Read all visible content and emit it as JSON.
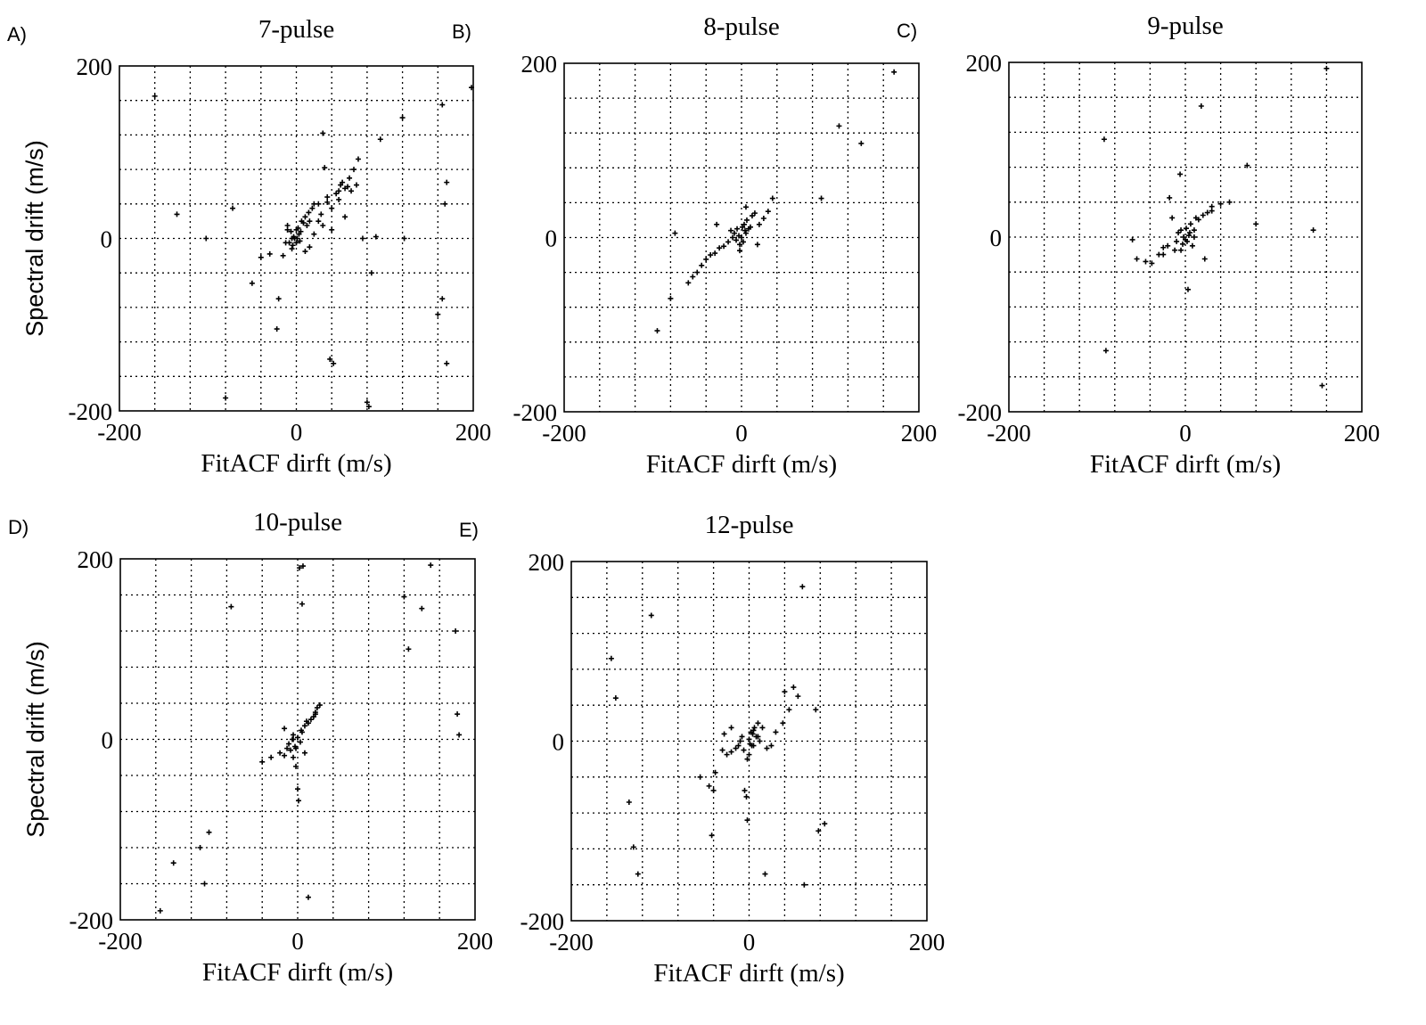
{
  "chart_data": [
    {
      "type": "scatter",
      "panel": "A)",
      "title": "7-pulse",
      "xlabel": "FitACF dirft (m/s)",
      "ylabel": "Spectral drift (m/s)",
      "xlim": [
        -200,
        200
      ],
      "ylim": [
        -200,
        200
      ],
      "xticks": [
        "-200",
        "0",
        "200"
      ],
      "yticks": [
        "-200",
        "0",
        "200"
      ],
      "grid": true,
      "series": [
        {
          "x": [
            -160,
            -135,
            -102,
            -72,
            -50,
            -40,
            -30,
            -20,
            -15,
            -12,
            -10,
            -8,
            -6,
            -5,
            -4,
            -3,
            -2,
            0,
            0,
            1,
            2,
            3,
            4,
            5,
            6,
            8,
            10,
            12,
            14,
            15,
            18,
            20,
            25,
            28,
            30,
            32,
            35,
            40,
            45,
            48,
            50,
            52,
            55,
            60,
            65,
            70,
            75,
            80,
            82,
            85,
            90,
            95,
            120,
            122,
            160,
            165,
            170,
            168,
            170,
            165,
            198,
            -80,
            -22,
            38,
            42,
            -5,
            10,
            20,
            -10,
            15,
            30,
            55,
            25,
            40,
            35,
            48,
            58,
            62,
            68
          ],
          "y": [
            165,
            28,
            0,
            35,
            -52,
            -22,
            -18,
            -70,
            -20,
            -5,
            15,
            -5,
            8,
            -12,
            -8,
            2,
            0,
            -5,
            10,
            0,
            12,
            5,
            -3,
            8,
            20,
            18,
            25,
            15,
            30,
            20,
            35,
            40,
            40,
            28,
            122,
            82,
            48,
            10,
            52,
            55,
            62,
            65,
            58,
            70,
            80,
            92,
            0,
            -190,
            -195,
            -40,
            2,
            115,
            140,
            0,
            -88,
            -70,
            -145,
            40,
            65,
            155,
            175,
            -185,
            -105,
            -140,
            -145,
            0,
            -15,
            5,
            10,
            -10,
            15,
            25,
            20,
            35,
            42,
            45,
            60,
            55,
            62
          ]
        }
      ]
    },
    {
      "type": "scatter",
      "panel": "B)",
      "title": "8-pulse",
      "xlabel": "FitACF dirft (m/s)",
      "ylabel": "",
      "xlim": [
        -200,
        200
      ],
      "ylim": [
        -200,
        200
      ],
      "xticks": [
        "-200",
        "0",
        "200"
      ],
      "yticks": [
        "-200",
        "0",
        "200"
      ],
      "grid": true,
      "series": [
        {
          "x": [
            -95,
            -80,
            -60,
            -55,
            -50,
            -45,
            -40,
            -35,
            -30,
            -25,
            -20,
            -15,
            -10,
            -8,
            -6,
            -5,
            -3,
            -2,
            0,
            1,
            2,
            3,
            4,
            5,
            6,
            8,
            10,
            12,
            15,
            20,
            25,
            30,
            35,
            90,
            110,
            135,
            172,
            -75,
            -28,
            5,
            -2,
            18,
            -12
          ],
          "y": [
            -107,
            -70,
            -52,
            -45,
            -40,
            -32,
            -25,
            -20,
            -18,
            -12,
            -10,
            -5,
            0,
            5,
            -3,
            10,
            2,
            -8,
            0,
            12,
            -5,
            15,
            8,
            5,
            20,
            10,
            12,
            25,
            28,
            15,
            22,
            30,
            45,
            45,
            128,
            108,
            190,
            5,
            15,
            35,
            -15,
            -8,
            8
          ]
        }
      ]
    },
    {
      "type": "scatter",
      "panel": "C)",
      "title": "9-pulse",
      "xlabel": "FitACF dirft (m/s)",
      "ylabel": "",
      "xlim": [
        -200,
        200
      ],
      "ylim": [
        -200,
        200
      ],
      "xticks": [
        "-200",
        "0",
        "200"
      ],
      "yticks": [
        "-200",
        "0",
        "200"
      ],
      "grid": true,
      "series": [
        {
          "x": [
            -92,
            -90,
            -60,
            -55,
            -45,
            -38,
            -30,
            -25,
            -20,
            -18,
            -15,
            -12,
            -10,
            -8,
            -6,
            -5,
            -3,
            -2,
            0,
            1,
            2,
            3,
            4,
            5,
            6,
            8,
            10,
            12,
            15,
            18,
            20,
            22,
            25,
            30,
            40,
            50,
            70,
            80,
            145,
            155,
            160,
            -25,
            -5,
            10,
            30
          ],
          "y": [
            112,
            -130,
            -3,
            -25,
            -28,
            -30,
            -20,
            -12,
            -10,
            45,
            22,
            -15,
            -5,
            5,
            72,
            8,
            -8,
            0,
            -3,
            10,
            -5,
            -60,
            2,
            5,
            15,
            -10,
            8,
            22,
            20,
            150,
            25,
            -25,
            28,
            35,
            38,
            40,
            82,
            15,
            8,
            -170,
            193,
            -20,
            -15,
            0,
            30
          ]
        }
      ]
    },
    {
      "type": "scatter",
      "panel": "D)",
      "title": "10-pulse",
      "xlabel": "FitACF dirft (m/s)",
      "ylabel": "Spectral drift (m/s)",
      "xlim": [
        -200,
        200
      ],
      "ylim": [
        -200,
        200
      ],
      "xticks": [
        "-200",
        "0",
        "200"
      ],
      "yticks": [
        "-200",
        "0",
        "200"
      ],
      "grid": true,
      "series": [
        {
          "x": [
            -155,
            -140,
            -110,
            -105,
            -100,
            -75,
            -40,
            -30,
            -20,
            -15,
            -12,
            -10,
            -8,
            -6,
            -5,
            -3,
            -2,
            0,
            1,
            2,
            3,
            4,
            5,
            6,
            8,
            10,
            12,
            15,
            18,
            20,
            25,
            5,
            -5,
            -2,
            0,
            12,
            20,
            120,
            125,
            140,
            150,
            178,
            180,
            182,
            -5,
            8,
            -15,
            22
          ],
          "y": [
            -190,
            -137,
            -120,
            -160,
            -103,
            147,
            -25,
            -20,
            -15,
            -18,
            -10,
            -5,
            -12,
            0,
            5,
            -8,
            -30,
            -55,
            -68,
            190,
            -3,
            10,
            8,
            192,
            15,
            20,
            -175,
            22,
            25,
            30,
            38,
            150,
            0,
            -10,
            2,
            18,
            28,
            158,
            100,
            145,
            193,
            120,
            28,
            5,
            -20,
            -15,
            12,
            35
          ]
        }
      ]
    },
    {
      "type": "scatter",
      "panel": "E)",
      "title": "12-pulse",
      "xlabel": "FitACF dirft (m/s)",
      "ylabel": "",
      "xlim": [
        -200,
        200
      ],
      "ylim": [
        -200,
        200
      ],
      "xticks": [
        "-200",
        "0",
        "200"
      ],
      "yticks": [
        "-200",
        "0",
        "200"
      ],
      "grid": true,
      "series": [
        {
          "x": [
            -155,
            -150,
            -135,
            -130,
            -125,
            -110,
            -55,
            -45,
            -42,
            -40,
            -38,
            -30,
            -25,
            -20,
            -15,
            -12,
            -10,
            -8,
            -6,
            -5,
            -3,
            -2,
            0,
            1,
            2,
            3,
            4,
            5,
            6,
            8,
            10,
            12,
            15,
            18,
            20,
            25,
            30,
            38,
            40,
            45,
            50,
            55,
            60,
            62,
            75,
            78,
            85,
            -2,
            0,
            5,
            10,
            -20,
            -28
          ],
          "y": [
            92,
            48,
            -68,
            -118,
            -148,
            140,
            -40,
            -50,
            -105,
            -55,
            -35,
            -10,
            -15,
            -12,
            -8,
            -5,
            0,
            5,
            -10,
            -55,
            -62,
            -88,
            2,
            -3,
            10,
            -5,
            8,
            12,
            15,
            5,
            20,
            0,
            15,
            -148,
            -8,
            -5,
            10,
            20,
            55,
            35,
            60,
            50,
            172,
            -160,
            35,
            -100,
            -92,
            -20,
            -15,
            -5,
            5,
            15,
            8
          ]
        }
      ]
    }
  ]
}
